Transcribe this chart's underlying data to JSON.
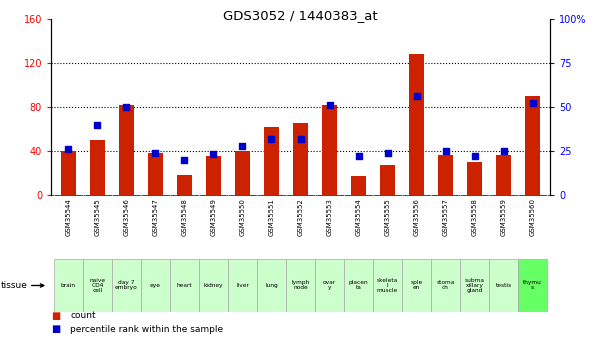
{
  "title": "GDS3052 / 1440383_at",
  "samples": [
    "GSM35544",
    "GSM35545",
    "GSM35546",
    "GSM35547",
    "GSM35548",
    "GSM35549",
    "GSM35550",
    "GSM35551",
    "GSM35552",
    "GSM35553",
    "GSM35554",
    "GSM35555",
    "GSM35556",
    "GSM35557",
    "GSM35558",
    "GSM35559",
    "GSM35560"
  ],
  "tissues": [
    "brain",
    "naive\nCD4\ncell",
    "day 7\nembryо",
    "eye",
    "heart",
    "kidney",
    "liver",
    "lung",
    "lymph\nnode",
    "ovar\ny",
    "placen\nta",
    "skeleta\nl\nmuscle",
    "sple\nen",
    "stoma\nch",
    "subma\nxillary\ngland",
    "testis",
    "thymu\ns"
  ],
  "tissue_colors": [
    "#ccffcc",
    "#ccffcc",
    "#ccffcc",
    "#ccffcc",
    "#ccffcc",
    "#ccffcc",
    "#ccffcc",
    "#ccffcc",
    "#ccffcc",
    "#ccffcc",
    "#ccffcc",
    "#ccffcc",
    "#ccffcc",
    "#ccffcc",
    "#ccffcc",
    "#ccffcc",
    "#66ff66"
  ],
  "counts": [
    40,
    50,
    82,
    38,
    18,
    35,
    40,
    62,
    65,
    82,
    17,
    27,
    128,
    36,
    30,
    36,
    90
  ],
  "percentiles": [
    26,
    40,
    50,
    24,
    20,
    23,
    28,
    32,
    32,
    51,
    22,
    24,
    56,
    25,
    22,
    25,
    52
  ],
  "ylim_left": [
    0,
    160
  ],
  "ylim_right": [
    0,
    100
  ],
  "yticks_left": [
    0,
    40,
    80,
    120,
    160
  ],
  "yticks_right": [
    0,
    25,
    50,
    75,
    100
  ],
  "bar_color": "#cc2200",
  "dot_color": "#0000cc",
  "gsm_bg_color": "#cccccc",
  "tissue_bg_color": "#ccffcc",
  "highlight_color": "#66ff66"
}
